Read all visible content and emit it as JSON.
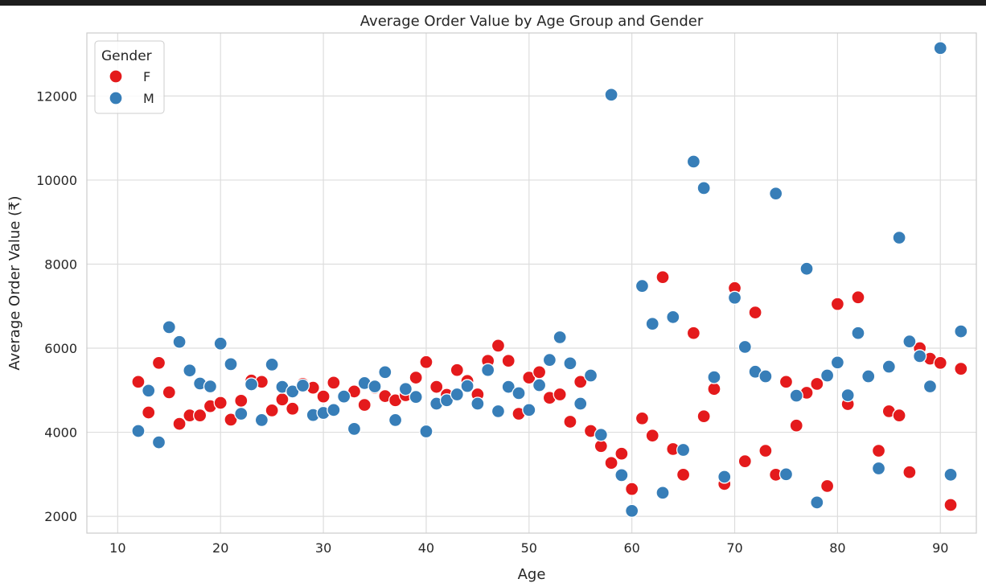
{
  "chart_data": {
    "type": "scatter",
    "title": "Average Order Value by Age Group and Gender",
    "xlabel": "Age",
    "ylabel": "Average Order Value (₹)",
    "xlim": [
      7,
      93.5
    ],
    "ylim": [
      1600,
      13500
    ],
    "xticks": [
      10,
      20,
      30,
      40,
      50,
      60,
      70,
      80,
      90
    ],
    "yticks": [
      2000,
      4000,
      6000,
      8000,
      10000,
      12000
    ],
    "grid": true,
    "legend": {
      "title": "Gender",
      "placement": "top-left"
    },
    "series": [
      {
        "name": "F",
        "color": "#e41a1c",
        "x": [
          12,
          13,
          14,
          15,
          16,
          17,
          18,
          19,
          20,
          21,
          22,
          23,
          24,
          25,
          26,
          27,
          28,
          29,
          30,
          31,
          32,
          33,
          34,
          35,
          36,
          37,
          38,
          39,
          40,
          41,
          42,
          43,
          44,
          45,
          46,
          47,
          48,
          49,
          50,
          51,
          52,
          53,
          54,
          55,
          56,
          57,
          58,
          59,
          60,
          61,
          62,
          63,
          64,
          65,
          66,
          67,
          68,
          69,
          70,
          71,
          72,
          73,
          74,
          75,
          76,
          77,
          78,
          79,
          80,
          81,
          82,
          83,
          84,
          85,
          86,
          87,
          88,
          89,
          90,
          91,
          92
        ],
        "y": [
          5200,
          4470,
          5650,
          4950,
          4200,
          4400,
          4400,
          4620,
          4700,
          4300,
          4750,
          5230,
          5200,
          4520,
          4780,
          4560,
          5150,
          5060,
          4850,
          5180,
          4870,
          4970,
          4650,
          5060,
          4860,
          4760,
          4880,
          5300,
          5670,
          5080,
          4890,
          5480,
          5220,
          4900,
          5700,
          6060,
          5700,
          4440,
          5300,
          5430,
          4820,
          4900,
          4250,
          5200,
          4030,
          3670,
          3270,
          3490,
          2650,
          4330,
          3920,
          7690,
          3600,
          2990,
          6360,
          4380,
          5030,
          2770,
          7430,
          3310,
          6850,
          3560,
          2990,
          5200,
          4160,
          4940,
          5150,
          2720,
          7050,
          4670,
          7210,
          5330,
          3560,
          4500,
          4400,
          3050,
          6000,
          5750,
          5650,
          2270,
          5510
        ]
      },
      {
        "name": "M",
        "color": "#377eb8",
        "x": [
          12,
          13,
          14,
          15,
          16,
          17,
          18,
          19,
          20,
          21,
          22,
          23,
          24,
          25,
          26,
          27,
          28,
          29,
          30,
          31,
          32,
          33,
          34,
          35,
          36,
          37,
          38,
          39,
          40,
          41,
          42,
          43,
          44,
          45,
          46,
          47,
          48,
          49,
          50,
          51,
          52,
          53,
          54,
          55,
          56,
          57,
          58,
          59,
          60,
          61,
          62,
          63,
          64,
          65,
          66,
          67,
          68,
          69,
          70,
          71,
          72,
          73,
          74,
          75,
          76,
          77,
          78,
          79,
          80,
          81,
          82,
          83,
          84,
          85,
          86,
          87,
          88,
          89,
          90,
          91,
          92
        ],
        "y": [
          4030,
          4990,
          3760,
          6500,
          6150,
          5470,
          5160,
          5090,
          6110,
          5620,
          4440,
          5140,
          4290,
          5610,
          5080,
          4970,
          5110,
          4410,
          4460,
          4530,
          4850,
          4080,
          5170,
          5090,
          5430,
          4290,
          5030,
          4840,
          4020,
          4680,
          4760,
          4900,
          5100,
          4680,
          5480,
          4500,
          5080,
          4930,
          4530,
          5120,
          5720,
          6260,
          5640,
          4680,
          5350,
          3940,
          12030,
          2980,
          2130,
          7480,
          6580,
          2560,
          6740,
          3580,
          10440,
          9810,
          5310,
          2940,
          7200,
          6030,
          5440,
          5330,
          9680,
          3000,
          4870,
          7890,
          2330,
          5350,
          5660,
          4880,
          6360,
          5330,
          3140,
          5560,
          8630,
          6160,
          5810,
          5090,
          13140,
          2990,
          6400
        ]
      }
    ]
  }
}
